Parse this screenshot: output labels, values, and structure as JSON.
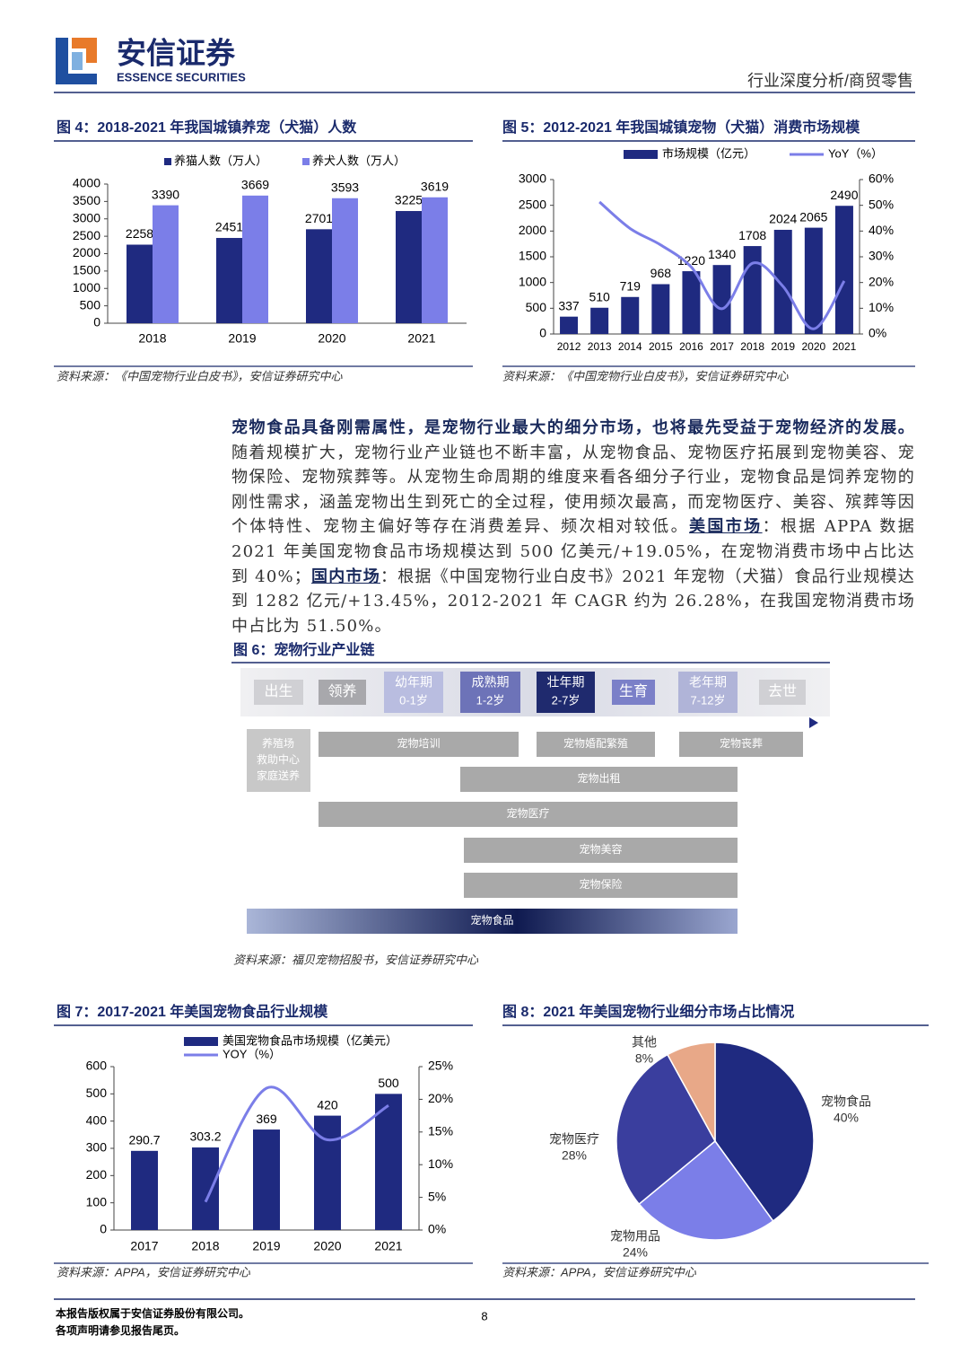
{
  "header": {
    "company": "安信证券",
    "company_en": "ESSENCE SECURITIES",
    "section": "行业深度分析/商贸零售"
  },
  "chart_data": [
    {
      "type": "bar",
      "title": "图 4：2018-2021 年我国城镇养宠（犬猫）人数",
      "source": "资料来源：《中国宠物行业白皮书》，安信证券研究中心",
      "categories": [
        "2018",
        "2019",
        "2020",
        "2021"
      ],
      "series": [
        {
          "name": "养猫人数（万人）",
          "color": "#1f2a80",
          "values": [
            2258,
            2451,
            2701,
            3225
          ]
        },
        {
          "name": "养犬人数（万人）",
          "color": "#7b7ee8",
          "values": [
            3390,
            3669,
            3593,
            3619
          ]
        }
      ],
      "ylim": [
        0,
        4000
      ],
      "yticks": [
        0,
        500,
        1000,
        1500,
        2000,
        2500,
        3000,
        3500,
        4000
      ]
    },
    {
      "type": "combo",
      "title": "图 5：2012-2021 年我国城镇宠物（犬猫）消费市场规模",
      "source": "资料来源：《中国宠物行业白皮书》，安信证券研究中心",
      "categories": [
        "2012",
        "2013",
        "2014",
        "2015",
        "2016",
        "2017",
        "2018",
        "2019",
        "2020",
        "2021"
      ],
      "series": [
        {
          "name": "市场规模（亿元）",
          "color": "#1f2a80",
          "values": [
            337,
            510,
            719,
            968,
            1220,
            1340,
            1708,
            2024,
            2065,
            2490
          ]
        },
        {
          "name": "YoY（%）",
          "color": "#7b7ee8",
          "axis": "y2",
          "values": [
            null,
            51.3,
            41.0,
            34.6,
            26.0,
            9.8,
            27.5,
            18.5,
            2.0,
            20.6
          ]
        }
      ],
      "ylim": [
        0,
        3000
      ],
      "yticks": [
        0,
        500,
        1000,
        1500,
        2000,
        2500,
        3000
      ],
      "y2lim": [
        0,
        60
      ],
      "y2ticks": [
        {
          "value": 0,
          "label": "0%"
        },
        {
          "value": 10,
          "label": "10%"
        },
        {
          "value": 20,
          "label": "20%"
        },
        {
          "value": 30,
          "label": "30%"
        },
        {
          "value": 40,
          "label": "40%"
        },
        {
          "value": 50,
          "label": "50%"
        },
        {
          "value": 60,
          "label": "60%"
        }
      ]
    },
    {
      "type": "combo",
      "title": "图 7：2017-2021 年美国宠物食品行业规模",
      "source": "资料来源：APPA，安信证券研究中心",
      "categories": [
        "2017",
        "2018",
        "2019",
        "2020",
        "2021"
      ],
      "series": [
        {
          "name": "美国宠物食品市场规模（亿美元）",
          "color": "#1f2a80",
          "values": [
            290.7,
            303.2,
            369,
            420,
            500
          ]
        },
        {
          "name": "YOY（%）",
          "color": "#7b7ee8",
          "axis": "y2",
          "values": [
            null,
            4.3,
            21.7,
            13.8,
            19.05
          ]
        }
      ],
      "ylim": [
        0,
        600
      ],
      "yticks": [
        0,
        100,
        200,
        300,
        400,
        500,
        600
      ],
      "y2lim": [
        0,
        25
      ],
      "y2ticks": [
        {
          "value": 0,
          "label": "0%"
        },
        {
          "value": 5,
          "label": "5%"
        },
        {
          "value": 10,
          "label": "10%"
        },
        {
          "value": 15,
          "label": "15%"
        },
        {
          "value": 20,
          "label": "20%"
        },
        {
          "value": 25,
          "label": "25%"
        }
      ]
    },
    {
      "type": "pie",
      "title": "图 8：2021 年美国宠物行业细分市场占比情况",
      "source": "资料来源：APPA，安信证券研究中心",
      "categories": [
        "宠物食品",
        "宠物用品",
        "宠物医疗",
        "其他"
      ],
      "values": [
        40,
        24,
        28,
        8
      ],
      "value_labels": [
        "40%",
        "24%",
        "28%",
        "8%"
      ],
      "colors": [
        "#1f2a80",
        "#7b7ee8",
        "#3a3e9e",
        "#e8a888"
      ]
    }
  ],
  "body": {
    "paragraph": [
      "宠物食品具备刚需属性，是宠物行业最大的细分市场，也将最先受益于宠物经济的发展。",
      "随着规模扩大，宠物行业产业链也不断丰富，从宠物食品、宠物医疗拓展到宠物美容、宠物保险、宠物殡葬等。从宠物生命周期的维度来看各细分子行业，宠物食品是饲养宠物的刚性需求，涵盖宠物出生到死亡的全过程，使用频次最高，而宠物医疗、美容、殡葬等因个体特性、宠物主偏好等存在消费差异、频次相对较低。",
      "美国市场",
      "：根据 APPA 数据 2021 年美国宠物食品市场规模达到 500 亿美元/+19.05%，在宠物消费市场中占比达到 40%；",
      "国内市场",
      "：根据《中国宠物行业白皮书》2021 年宠物（犬猫）食品行业规模达到 1282 亿元/+13.45%，2012-2021 年 CAGR 约为 26.28%，在我国宠物消费市场中占比为 51.50%。"
    ]
  },
  "figure6": {
    "title": "图 6：宠物行业产业链",
    "source": "资料来源：福贝宠物招股书，安信证券研究中心",
    "stages": [
      {
        "label": "出生"
      },
      {
        "label": "领养"
      },
      {
        "label": "幼年期",
        "sub": "0-1岁"
      },
      {
        "label": "成熟期",
        "sub": "1-2岁"
      },
      {
        "label": "壮年期",
        "sub": "2-7岁"
      },
      {
        "label": "生育"
      },
      {
        "label": "老年期",
        "sub": "7-12岁"
      },
      {
        "label": "去世"
      }
    ],
    "sources": [
      "养殖场",
      "救助中心",
      "家庭送养"
    ],
    "bars": [
      "宠物培训",
      "宠物婚配繁殖",
      "宠物丧葬",
      "宠物出租",
      "宠物医疗",
      "宠物美容",
      "宠物保险",
      "宠物食品"
    ]
  },
  "footer": {
    "copyright": "本报告版权属于安信证券股份有限公司。",
    "notice": "各项声明请参见报告尾页。",
    "page": "8"
  }
}
